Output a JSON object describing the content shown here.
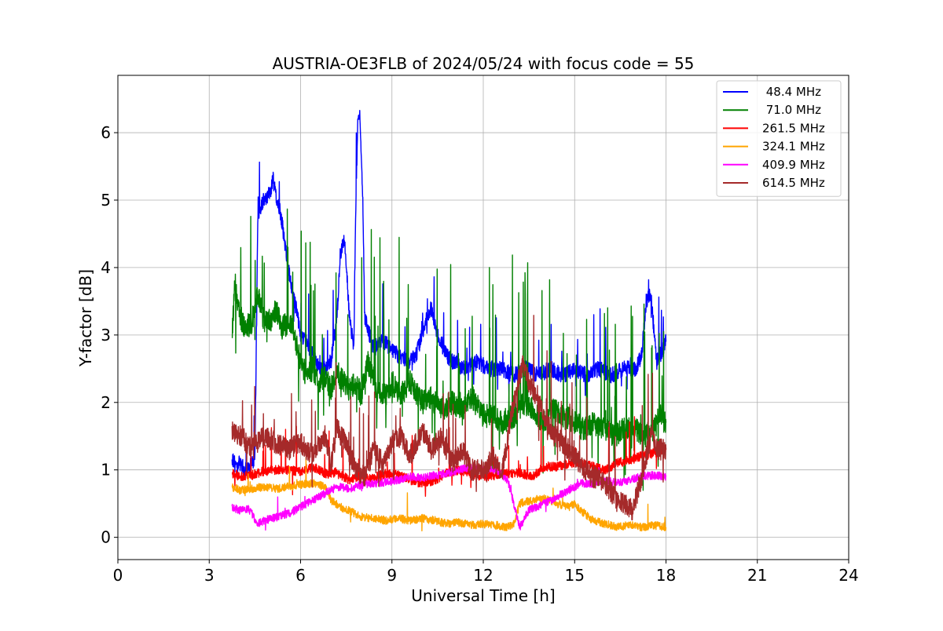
{
  "chart_data": {
    "type": "line",
    "title": "AUSTRIA-OE3FLB of 2024/05/24 with focus code = 55",
    "xlabel": "Universal Time [h]",
    "ylabel": "Y-factor [dB]",
    "xlim": [
      0,
      24
    ],
    "ylim": [
      -0.33,
      6.85
    ],
    "xticks": [
      0,
      3,
      6,
      9,
      12,
      15,
      18,
      21,
      24
    ],
    "yticks": [
      0,
      1,
      2,
      3,
      4,
      5,
      6
    ],
    "grid": true,
    "legend_position": "top-right",
    "series": [
      {
        "name": " 48.4 MHz",
        "color": "#0000ff",
        "x": [
          3.75,
          3.9,
          4.0,
          4.2,
          4.4,
          4.5,
          4.6,
          4.8,
          5.0,
          5.1,
          5.2,
          5.35,
          5.5,
          5.7,
          5.9,
          6.0,
          6.2,
          6.4,
          6.6,
          6.8,
          7.0,
          7.2,
          7.3,
          7.45,
          7.6,
          7.75,
          7.8,
          7.88,
          7.95,
          8.05,
          8.1,
          8.2,
          8.4,
          8.7,
          9.0,
          9.2,
          9.5,
          9.8,
          10.1,
          10.3,
          10.5,
          10.8,
          11.0,
          11.4,
          11.8,
          12.2,
          12.6,
          13.0,
          13.4,
          13.8,
          14.2,
          14.6,
          15.0,
          15.4,
          15.8,
          16.2,
          16.6,
          17.0,
          17.2,
          17.35,
          17.5,
          17.7,
          17.9,
          18.0
        ],
        "y": [
          1.2,
          1.0,
          1.1,
          1.0,
          1.1,
          1.2,
          4.8,
          5.0,
          5.1,
          5.3,
          5.0,
          4.8,
          4.3,
          3.7,
          3.3,
          3.0,
          2.9,
          2.7,
          2.5,
          2.5,
          2.6,
          3.3,
          4.2,
          4.4,
          3.3,
          2.8,
          4.6,
          6.2,
          6.3,
          4.9,
          3.3,
          3.1,
          2.8,
          2.9,
          2.8,
          2.7,
          2.6,
          2.7,
          3.2,
          3.4,
          3.0,
          2.7,
          2.6,
          2.5,
          2.6,
          2.5,
          2.5,
          2.4,
          2.5,
          2.4,
          2.5,
          2.4,
          2.5,
          2.4,
          2.5,
          2.4,
          2.5,
          2.5,
          2.7,
          3.5,
          3.6,
          2.6,
          2.8,
          2.9
        ]
      },
      {
        "name": " 71.0 MHz",
        "color": "#008000",
        "x": [
          3.75,
          3.85,
          4.0,
          4.2,
          4.4,
          4.6,
          4.8,
          5.0,
          5.2,
          5.4,
          5.6,
          5.8,
          6.0,
          6.2,
          6.4,
          6.6,
          6.8,
          7.0,
          7.2,
          7.4,
          7.6,
          7.8,
          8.0,
          8.2,
          8.5,
          8.8,
          9.0,
          9.3,
          9.6,
          10.0,
          10.3,
          10.6,
          11.0,
          11.3,
          11.6,
          12.0,
          12.3,
          12.6,
          13.0,
          13.3,
          13.6,
          14.0,
          14.3,
          14.6,
          15.0,
          15.3,
          15.6,
          16.0,
          16.3,
          16.6,
          17.0,
          17.3,
          17.6,
          17.8,
          18.0
        ],
        "y": [
          3.0,
          3.8,
          3.3,
          3.1,
          3.2,
          3.6,
          3.2,
          3.2,
          3.4,
          3.1,
          3.2,
          3.0,
          2.6,
          2.4,
          2.5,
          2.3,
          2.4,
          2.2,
          2.5,
          2.3,
          2.2,
          2.3,
          2.1,
          2.6,
          2.2,
          2.1,
          2.3,
          2.1,
          2.3,
          2.0,
          2.1,
          1.9,
          2.0,
          1.9,
          2.1,
          1.8,
          1.8,
          1.7,
          1.8,
          2.0,
          1.9,
          1.7,
          1.9,
          1.8,
          1.7,
          1.6,
          1.7,
          1.6,
          1.5,
          1.6,
          1.6,
          1.5,
          1.6,
          1.8,
          1.7
        ]
      },
      {
        "name": "261.5 MHz",
        "color": "#ff0000",
        "x": [
          3.75,
          4.0,
          4.4,
          4.8,
          5.2,
          5.6,
          6.0,
          6.4,
          6.8,
          7.2,
          7.6,
          8.0,
          8.4,
          8.8,
          9.2,
          9.6,
          10.0,
          10.4,
          10.8,
          11.2,
          11.6,
          12.0,
          12.4,
          12.8,
          13.2,
          13.6,
          14.0,
          14.4,
          14.8,
          15.2,
          15.6,
          16.0,
          16.4,
          16.8,
          17.2,
          17.6,
          18.0
        ],
        "y": [
          0.95,
          0.9,
          0.92,
          0.98,
          1.0,
          1.0,
          0.97,
          1.05,
          0.95,
          0.95,
          0.85,
          0.9,
          0.88,
          0.95,
          0.92,
          0.85,
          0.8,
          0.85,
          0.95,
          1.0,
          0.95,
          0.9,
          0.92,
          0.95,
          0.95,
          0.9,
          1.05,
          1.05,
          1.1,
          1.1,
          1.05,
          1.0,
          1.1,
          1.15,
          1.2,
          1.25,
          1.3
        ]
      },
      {
        "name": "324.1 MHz",
        "color": "#ffa500",
        "x": [
          3.75,
          4.0,
          4.4,
          4.8,
          5.2,
          5.6,
          6.0,
          6.4,
          6.8,
          7.0,
          7.3,
          7.6,
          8.0,
          8.4,
          8.8,
          9.2,
          9.6,
          10.0,
          10.4,
          10.8,
          11.2,
          11.6,
          12.0,
          12.4,
          12.8,
          13.0,
          13.2,
          13.6,
          14.0,
          14.4,
          14.8,
          15.0,
          15.2,
          15.6,
          16.0,
          16.4,
          16.8,
          17.2,
          17.6,
          18.0
        ],
        "y": [
          0.75,
          0.7,
          0.72,
          0.75,
          0.72,
          0.75,
          0.78,
          0.8,
          0.75,
          0.55,
          0.45,
          0.4,
          0.3,
          0.28,
          0.25,
          0.28,
          0.25,
          0.28,
          0.25,
          0.2,
          0.22,
          0.18,
          0.2,
          0.18,
          0.15,
          0.2,
          0.5,
          0.55,
          0.58,
          0.5,
          0.45,
          0.5,
          0.4,
          0.25,
          0.2,
          0.15,
          0.18,
          0.15,
          0.18,
          0.15
        ]
      },
      {
        "name": "409.9 MHz",
        "color": "#ff00ff",
        "x": [
          3.75,
          4.0,
          4.3,
          4.6,
          4.8,
          5.2,
          5.6,
          6.0,
          6.4,
          6.8,
          7.2,
          7.6,
          8.0,
          8.4,
          8.8,
          9.2,
          9.6,
          10.0,
          10.4,
          10.8,
          11.2,
          11.6,
          12.0,
          12.4,
          12.8,
          13.0,
          13.2,
          13.5,
          14.0,
          14.4,
          14.8,
          15.2,
          15.6,
          16.0,
          16.4,
          16.8,
          17.2,
          17.6,
          18.0
        ],
        "y": [
          0.45,
          0.4,
          0.42,
          0.2,
          0.25,
          0.3,
          0.35,
          0.45,
          0.55,
          0.65,
          0.75,
          0.72,
          0.78,
          0.8,
          0.82,
          0.85,
          0.9,
          0.88,
          0.92,
          0.95,
          1.0,
          1.05,
          1.0,
          1.0,
          0.85,
          0.5,
          0.15,
          0.4,
          0.5,
          0.6,
          0.7,
          0.8,
          0.8,
          0.85,
          0.8,
          0.85,
          0.9,
          0.92,
          0.9
        ]
      },
      {
        "name": "614.5 MHz",
        "color": "#a52a2a",
        "x": [
          3.75,
          4.0,
          4.4,
          4.8,
          5.2,
          5.6,
          6.0,
          6.4,
          6.8,
          7.0,
          7.2,
          7.5,
          7.8,
          8.1,
          8.4,
          8.7,
          9.0,
          9.3,
          9.6,
          10.0,
          10.3,
          10.6,
          11.0,
          11.3,
          11.6,
          12.0,
          12.3,
          12.6,
          13.0,
          13.3,
          13.5,
          13.8,
          14.2,
          14.6,
          15.0,
          15.3,
          15.6,
          16.0,
          16.3,
          16.6,
          16.9,
          17.2,
          17.5,
          17.7,
          18.0
        ],
        "y": [
          1.6,
          1.5,
          1.3,
          1.5,
          1.4,
          1.3,
          1.4,
          1.2,
          1.5,
          1.1,
          1.6,
          1.4,
          1.0,
          0.9,
          1.3,
          1.1,
          1.4,
          1.5,
          1.2,
          1.6,
          1.3,
          1.5,
          1.1,
          1.3,
          1.0,
          1.0,
          1.2,
          0.9,
          2.0,
          2.6,
          2.3,
          2.0,
          1.6,
          1.4,
          1.2,
          1.0,
          0.9,
          0.8,
          0.6,
          0.5,
          0.4,
          0.9,
          1.5,
          1.3,
          1.3
        ]
      }
    ]
  }
}
